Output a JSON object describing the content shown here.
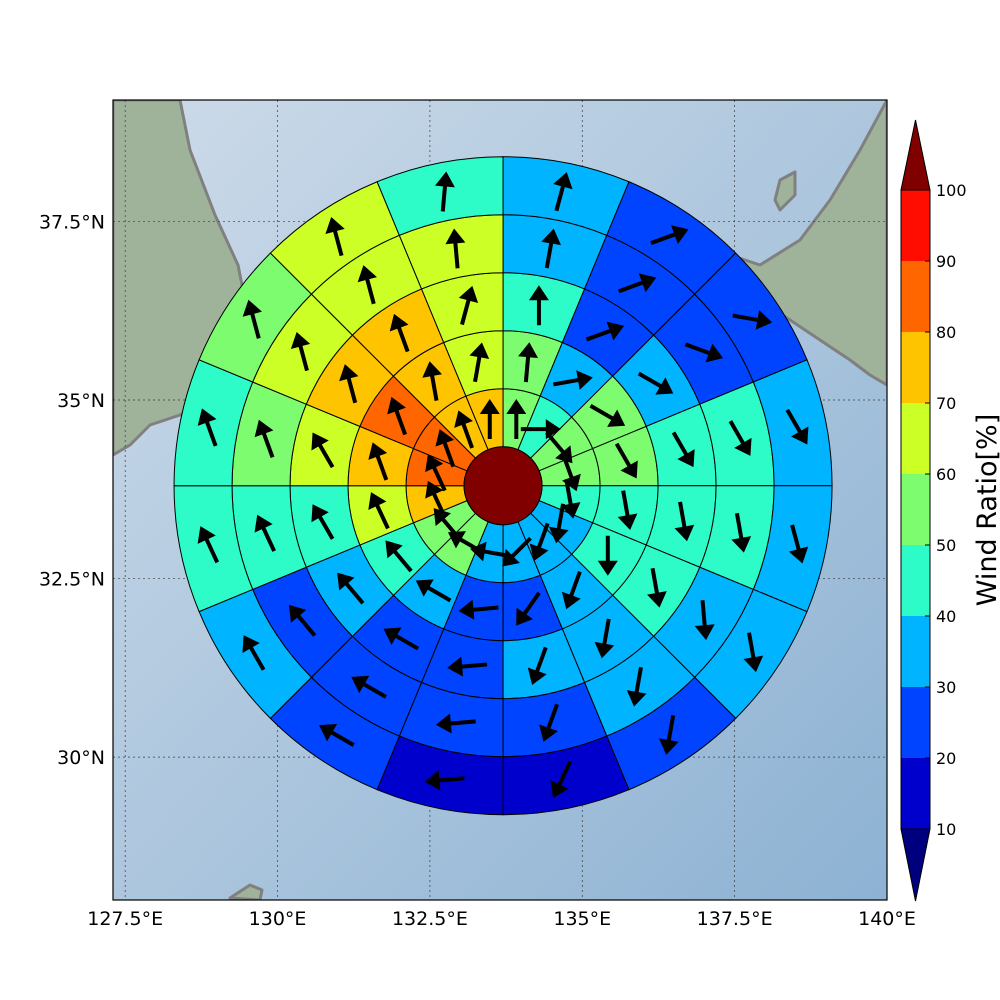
{
  "map": {
    "lon_range": [
      127.3,
      140.0
    ],
    "lat_range": [
      28.0,
      39.2
    ],
    "center": {
      "lon": 133.7,
      "lat": 33.8
    },
    "lon_ticks": [
      {
        "value": 127.5,
        "label": "127.5°E"
      },
      {
        "value": 130.0,
        "label": "130°E"
      },
      {
        "value": 132.5,
        "label": "132.5°E"
      },
      {
        "value": 135.0,
        "label": "135°E"
      },
      {
        "value": 137.5,
        "label": "137.5°E"
      },
      {
        "value": 140.0,
        "label": "140°E"
      }
    ],
    "lat_ticks": [
      {
        "value": 30.0,
        "label": "30°N"
      },
      {
        "value": 32.5,
        "label": "32.5°N"
      },
      {
        "value": 35.0,
        "label": "35°N"
      },
      {
        "value": 37.5,
        "label": "37.5°N"
      }
    ],
    "colors": {
      "ocean_light": "#cddbe9",
      "ocean_dark": "#8db2d3",
      "land": "#9fb39b",
      "coastline": "#808080",
      "gridline": "#3a3a3a",
      "cell_edge": "#000000",
      "arrow": "#000000"
    }
  },
  "colorbar": {
    "label": "Wind Ratio[%]",
    "levels": [
      10,
      20,
      30,
      40,
      50,
      60,
      70,
      80,
      90,
      100
    ],
    "colors": [
      "#0000cd",
      "#0044ff",
      "#00b4ff",
      "#2dfcc8",
      "#7cfc6e",
      "#ccff26",
      "#ffc400",
      "#ff6600",
      "#ff0d00"
    ],
    "under_color": "#00007f",
    "over_color": "#800000",
    "tick_labels": [
      "10",
      "20",
      "30",
      "40",
      "50",
      "60",
      "70",
      "80",
      "90",
      "100"
    ]
  },
  "chart_data": {
    "type": "polar_wind_rose_map",
    "sectors": 16,
    "sector_start_deg_from_north": 0,
    "sector_order": "clockwise",
    "center_cell": {
      "ratio": 100,
      "arrow_deg": null
    },
    "rings": [
      {
        "ratio": [
          50,
          40,
          50,
          50,
          40,
          30,
          30,
          30,
          30,
          50,
          50,
          70,
          80,
          80,
          70,
          70
        ],
        "arrow_deg": [
          0,
          90,
          140,
          160,
          170,
          190,
          200,
          225,
          280,
          300,
          320,
          335,
          335,
          340,
          340,
          0
        ]
      },
      {
        "ratio": [
          50,
          30,
          50,
          50,
          40,
          40,
          30,
          20,
          20,
          30,
          40,
          60,
          70,
          80,
          70,
          60
        ],
        "arrow_deg": [
          5,
          80,
          120,
          150,
          170,
          180,
          200,
          215,
          265,
          300,
          320,
          335,
          340,
          340,
          350,
          10
        ]
      },
      {
        "ratio": [
          40,
          20,
          30,
          40,
          40,
          40,
          30,
          30,
          20,
          20,
          30,
          40,
          60,
          70,
          70,
          60
        ],
        "arrow_deg": [
          0,
          70,
          120,
          150,
          170,
          170,
          190,
          200,
          265,
          300,
          320,
          330,
          330,
          345,
          340,
          15
        ]
      },
      {
        "ratio": [
          30,
          20,
          20,
          40,
          40,
          30,
          30,
          20,
          20,
          20,
          20,
          40,
          50,
          60,
          60,
          60
        ],
        "arrow_deg": [
          10,
          70,
          110,
          150,
          170,
          175,
          190,
          200,
          265,
          300,
          320,
          335,
          340,
          345,
          345,
          355
        ]
      },
      {
        "ratio": [
          30,
          20,
          20,
          30,
          30,
          30,
          20,
          10,
          10,
          20,
          30,
          40,
          40,
          50,
          60,
          40
        ],
        "arrow_deg": [
          15,
          70,
          100,
          150,
          165,
          170,
          190,
          205,
          265,
          300,
          330,
          335,
          340,
          345,
          345,
          5
        ]
      }
    ]
  }
}
